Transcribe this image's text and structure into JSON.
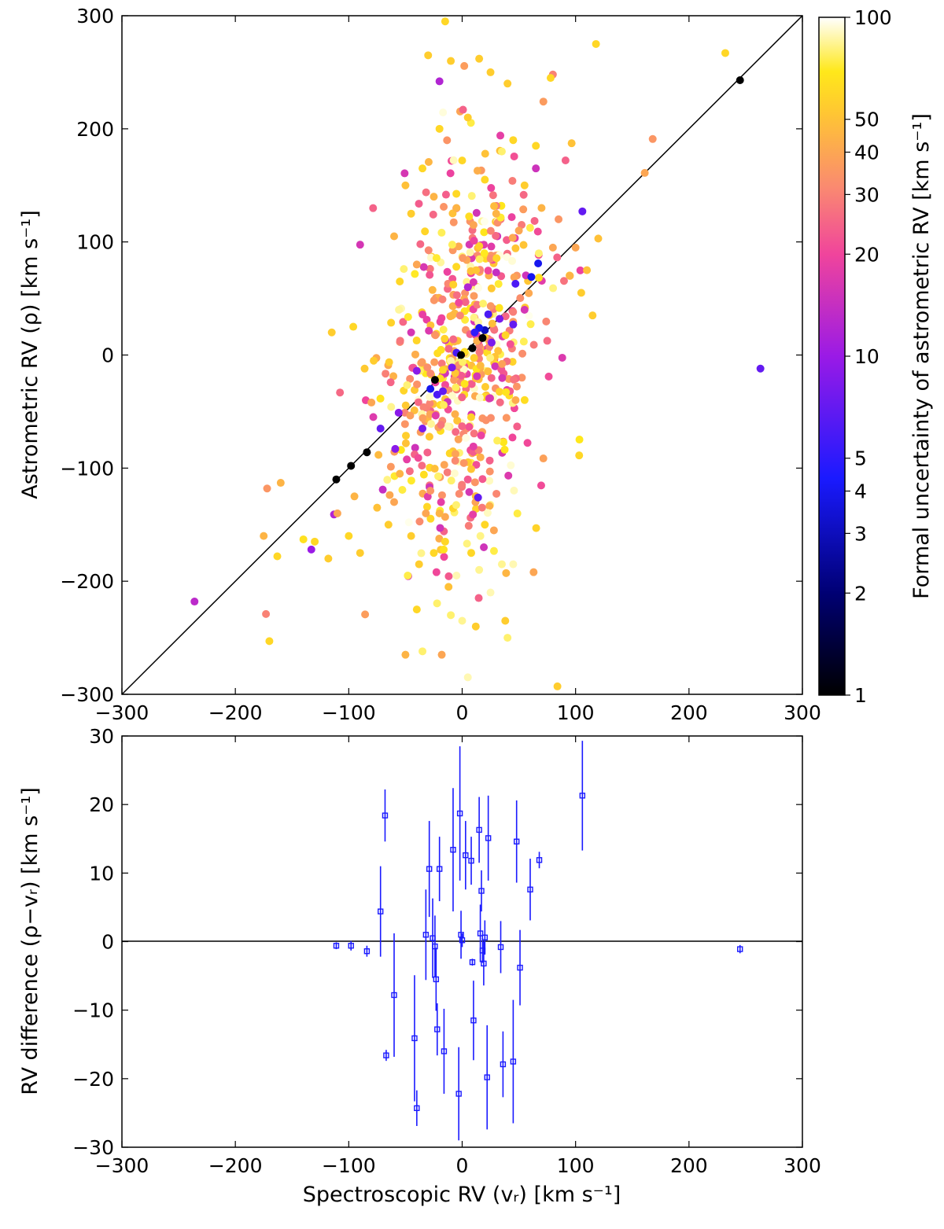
{
  "chart_data": [
    {
      "type": "scatter",
      "xlabel": "",
      "ylabel": "Astrometric RV (ρ) [km s⁻¹]",
      "xlim": [
        -300,
        300
      ],
      "ylim": [
        -300,
        300
      ],
      "xticks": [
        "−300",
        "−200",
        "−100",
        "0",
        "100",
        "200",
        "300"
      ],
      "yticks": [
        "300",
        "200",
        "100",
        "0",
        "−100",
        "−200",
        "−300"
      ],
      "reference_line": "y = x",
      "colorbar": {
        "label": "Formal uncertainty of astrometric RV [km s⁻¹]",
        "scale": "log",
        "range": [
          1,
          100
        ],
        "colormap": "gnuplot2",
        "ticks": [
          {
            "value": 100,
            "label": "100"
          },
          {
            "value": 50,
            "label": "50"
          },
          {
            "value": 40,
            "label": "40"
          },
          {
            "value": 30,
            "label": "30"
          },
          {
            "value": 20,
            "label": "20"
          },
          {
            "value": 10,
            "label": "10"
          },
          {
            "value": 5,
            "label": "5"
          },
          {
            "value": 4,
            "label": "4"
          },
          {
            "value": 3,
            "label": "3"
          },
          {
            "value": 2,
            "label": "2"
          },
          {
            "value": 1,
            "label": "1"
          }
        ]
      },
      "highlighted_points": [
        {
          "x": 245,
          "y": 243,
          "err": 1
        },
        {
          "x": -111,
          "y": -110,
          "err": 1
        },
        {
          "x": -98,
          "y": -98,
          "err": 1
        },
        {
          "x": -84,
          "y": -86,
          "err": 1
        },
        {
          "x": 9,
          "y": 6,
          "err": 1
        },
        {
          "x": -24,
          "y": -22,
          "err": 1
        },
        {
          "x": 18,
          "y": 15,
          "err": 1
        },
        {
          "x": -1,
          "y": 0,
          "err": 1
        }
      ],
      "points": [
        {
          "x": -236,
          "y": -218,
          "err": 13
        },
        {
          "x": 263,
          "y": -12,
          "err": 7
        },
        {
          "x": -20,
          "y": 242,
          "err": 12
        },
        {
          "x": 80,
          "y": 248,
          "err": 30
        },
        {
          "x": 168,
          "y": 191,
          "err": 35
        },
        {
          "x": 161,
          "y": 161,
          "err": 40
        },
        {
          "x": 106,
          "y": 127,
          "err": 7
        },
        {
          "x": 65,
          "y": 165,
          "err": 15
        },
        {
          "x": 67,
          "y": 81,
          "err": 4
        },
        {
          "x": 61,
          "y": 69,
          "err": 4
        },
        {
          "x": 47,
          "y": 63,
          "err": 6
        },
        {
          "x": 14,
          "y": -126,
          "err": 7
        },
        {
          "x": -133,
          "y": -172,
          "err": 10
        },
        {
          "x": -113,
          "y": -141,
          "err": 12
        },
        {
          "x": -70,
          "y": -119,
          "err": 14
        },
        {
          "x": -72,
          "y": -65,
          "err": 7
        },
        {
          "x": -59,
          "y": -83,
          "err": 9
        },
        {
          "x": -35,
          "y": -65,
          "err": 8
        },
        {
          "x": -28,
          "y": -30,
          "err": 4
        },
        {
          "x": -22,
          "y": -35,
          "err": 6
        },
        {
          "x": -17,
          "y": -32,
          "err": 7
        },
        {
          "x": 20,
          "y": 22,
          "err": 3
        },
        {
          "x": 15,
          "y": 24,
          "err": 4
        },
        {
          "x": 23,
          "y": 36,
          "err": 6
        },
        {
          "x": 11,
          "y": 20,
          "err": 5
        },
        {
          "x": 33,
          "y": 32,
          "err": 8
        },
        {
          "x": 45,
          "y": 27,
          "err": 7
        },
        {
          "x": 26,
          "y": 11,
          "err": 8
        },
        {
          "x": -5,
          "y": 2,
          "err": 6
        },
        {
          "x": -9,
          "y": -11,
          "err": 8
        },
        {
          "x": -40,
          "y": -14,
          "err": 9
        },
        {
          "x": -56,
          "y": -51,
          "err": 9
        },
        {
          "x": 5,
          "y": 60,
          "err": 12
        },
        {
          "x": 30,
          "y": 73,
          "err": 14
        },
        {
          "x": 55,
          "y": 40,
          "err": 16
        },
        {
          "x": -45,
          "y": 20,
          "err": 16
        },
        {
          "x": -85,
          "y": -40,
          "err": 20
        },
        {
          "x": -173,
          "y": -229,
          "err": 30
        },
        {
          "x": -172,
          "y": -118,
          "err": 35
        },
        {
          "x": -160,
          "y": -113,
          "err": 45
        },
        {
          "x": -175,
          "y": -160,
          "err": 45
        },
        {
          "x": -170,
          "y": -253,
          "err": 60
        },
        {
          "x": -163,
          "y": -178,
          "err": 60
        },
        {
          "x": -140,
          "y": -163,
          "err": 65
        },
        {
          "x": -130,
          "y": -165,
          "err": 60
        },
        {
          "x": -118,
          "y": -180,
          "err": 55
        },
        {
          "x": -110,
          "y": -140,
          "err": 40
        },
        {
          "x": -115,
          "y": 20,
          "err": 55
        },
        {
          "x": -96,
          "y": 25,
          "err": 60
        },
        {
          "x": -95,
          "y": -125,
          "err": 45
        },
        {
          "x": -90,
          "y": -175,
          "err": 55
        },
        {
          "x": -100,
          "y": -160,
          "err": 60
        },
        {
          "x": -80,
          "y": -42,
          "err": 40
        },
        {
          "x": -78,
          "y": -5,
          "err": 55
        },
        {
          "x": -75,
          "y": -135,
          "err": 50
        },
        {
          "x": -65,
          "y": -150,
          "err": 55
        },
        {
          "x": -60,
          "y": -130,
          "err": 40
        },
        {
          "x": -55,
          "y": -105,
          "err": 45
        },
        {
          "x": -50,
          "y": -265,
          "err": 45
        },
        {
          "x": -48,
          "y": -195,
          "err": 75
        },
        {
          "x": -45,
          "y": -160,
          "err": 55
        },
        {
          "x": -40,
          "y": -225,
          "err": 60
        },
        {
          "x": -38,
          "y": -185,
          "err": 55
        },
        {
          "x": -35,
          "y": -262,
          "err": 80
        },
        {
          "x": -32,
          "y": -140,
          "err": 40
        },
        {
          "x": -28,
          "y": -120,
          "err": 35
        },
        {
          "x": -25,
          "y": -175,
          "err": 60
        },
        {
          "x": -20,
          "y": -140,
          "err": 45
        },
        {
          "x": -18,
          "y": -265,
          "err": 40
        },
        {
          "x": -15,
          "y": -165,
          "err": 60
        },
        {
          "x": -12,
          "y": -205,
          "err": 50
        },
        {
          "x": -10,
          "y": -230,
          "err": 80
        },
        {
          "x": -5,
          "y": -195,
          "err": 90
        },
        {
          "x": 0,
          "y": -235,
          "err": 85
        },
        {
          "x": 5,
          "y": -285,
          "err": 90
        },
        {
          "x": 8,
          "y": -175,
          "err": 60
        },
        {
          "x": 12,
          "y": -240,
          "err": 55
        },
        {
          "x": 15,
          "y": -190,
          "err": 85
        },
        {
          "x": 20,
          "y": -150,
          "err": 60
        },
        {
          "x": 25,
          "y": -210,
          "err": 90
        },
        {
          "x": 28,
          "y": -155,
          "err": 40
        },
        {
          "x": 35,
          "y": -185,
          "err": 85
        },
        {
          "x": 38,
          "y": -235,
          "err": 55
        },
        {
          "x": 40,
          "y": -250,
          "err": 80
        },
        {
          "x": 45,
          "y": -185,
          "err": 90
        },
        {
          "x": 63,
          "y": -192,
          "err": 40
        },
        {
          "x": 84,
          "y": -293,
          "err": 55
        },
        {
          "x": -55,
          "y": 65,
          "err": 60
        },
        {
          "x": -60,
          "y": 105,
          "err": 45
        },
        {
          "x": -50,
          "y": 150,
          "err": 50
        },
        {
          "x": -45,
          "y": 125,
          "err": 55
        },
        {
          "x": -40,
          "y": 80,
          "err": 40
        },
        {
          "x": -35,
          "y": 165,
          "err": 60
        },
        {
          "x": -30,
          "y": 265,
          "err": 55
        },
        {
          "x": -25,
          "y": 140,
          "err": 45
        },
        {
          "x": -20,
          "y": 200,
          "err": 60
        },
        {
          "x": -15,
          "y": 295,
          "err": 60
        },
        {
          "x": -10,
          "y": 260,
          "err": 55
        },
        {
          "x": -5,
          "y": 130,
          "err": 45
        },
        {
          "x": 0,
          "y": 172,
          "err": 60
        },
        {
          "x": 5,
          "y": 210,
          "err": 55
        },
        {
          "x": 10,
          "y": 115,
          "err": 40
        },
        {
          "x": 15,
          "y": 262,
          "err": 55
        },
        {
          "x": 20,
          "y": 155,
          "err": 60
        },
        {
          "x": 25,
          "y": 250,
          "err": 55
        },
        {
          "x": 30,
          "y": 125,
          "err": 45
        },
        {
          "x": 35,
          "y": 180,
          "err": 80
        },
        {
          "x": 40,
          "y": 240,
          "err": 55
        },
        {
          "x": 45,
          "y": 190,
          "err": 60
        },
        {
          "x": 50,
          "y": 110,
          "err": 40
        },
        {
          "x": 55,
          "y": 150,
          "err": 55
        },
        {
          "x": 65,
          "y": 185,
          "err": 60
        },
        {
          "x": 70,
          "y": 130,
          "err": 45
        },
        {
          "x": 78,
          "y": 245,
          "err": 60
        },
        {
          "x": 80,
          "y": 95,
          "err": 40
        },
        {
          "x": 85,
          "y": 120,
          "err": 35
        },
        {
          "x": 95,
          "y": 70,
          "err": 45
        },
        {
          "x": 100,
          "y": 95,
          "err": 40
        },
        {
          "x": 105,
          "y": 55,
          "err": 55
        },
        {
          "x": 110,
          "y": 75,
          "err": 50
        },
        {
          "x": 115,
          "y": 35,
          "err": 55
        },
        {
          "x": 118,
          "y": 275,
          "err": 60
        },
        {
          "x": 120,
          "y": 103,
          "err": 50
        },
        {
          "x": 232,
          "y": 267,
          "err": 60
        }
      ],
      "cloud": {
        "center": [
          0,
          0
        ],
        "sd": [
          30,
          85
        ],
        "count": 560,
        "err_range": [
          15,
          100
        ],
        "note": "dense cloud of stars"
      }
    },
    {
      "type": "scatter",
      "xlabel": "Spectroscopic RV (vᵣ) [km s⁻¹]",
      "ylabel": "RV difference (ρ−vᵣ) [km s⁻¹]",
      "xlim": [
        -300,
        300
      ],
      "ylim": [
        -30,
        30
      ],
      "xticks": [
        "−300",
        "−200",
        "−100",
        "0",
        "100",
        "200",
        "300"
      ],
      "yticks": [
        "30",
        "20",
        "10",
        "0",
        "−10",
        "−20",
        "−30"
      ],
      "reference_line": "y = 0",
      "series_color": "#1a1aff",
      "points": [
        {
          "x": -111,
          "y": -0.6,
          "err": 0.5
        },
        {
          "x": -98,
          "y": -0.6,
          "err": 0.7
        },
        {
          "x": -84,
          "y": -1.4,
          "err": 0.8
        },
        {
          "x": -72,
          "y": 4.4,
          "err": 6.6
        },
        {
          "x": -68,
          "y": 18.4,
          "err": 3.8
        },
        {
          "x": -67,
          "y": -16.6,
          "err": 0.8
        },
        {
          "x": -60,
          "y": -7.8,
          "err": 9.0
        },
        {
          "x": -42,
          "y": -14.1,
          "err": 9.2
        },
        {
          "x": -40,
          "y": -24.3,
          "err": 2.6
        },
        {
          "x": -32,
          "y": 1.0,
          "err": 6.6
        },
        {
          "x": -29,
          "y": 10.6,
          "err": 7.0
        },
        {
          "x": -26,
          "y": 0.5,
          "err": 5.8
        },
        {
          "x": -24,
          "y": -0.7,
          "err": 4.5
        },
        {
          "x": -23,
          "y": -5.5,
          "err": 4.6
        },
        {
          "x": -22,
          "y": -12.8,
          "err": 3.8
        },
        {
          "x": -20,
          "y": 10.6,
          "err": 4.7
        },
        {
          "x": -16,
          "y": -16.0,
          "err": 6.2
        },
        {
          "x": -8,
          "y": 13.4,
          "err": 9.0
        },
        {
          "x": -3,
          "y": -22.2,
          "err": 6.8
        },
        {
          "x": -2,
          "y": 18.7,
          "err": 9.8
        },
        {
          "x": -1,
          "y": 1.0,
          "err": 3.5
        },
        {
          "x": 0,
          "y": 0.2,
          "err": 1.0
        },
        {
          "x": 3,
          "y": 12.6,
          "err": 5.0
        },
        {
          "x": 8,
          "y": 11.8,
          "err": 3.5
        },
        {
          "x": 9,
          "y": -3.0,
          "err": 0.5
        },
        {
          "x": 10,
          "y": -11.5,
          "err": 5.8
        },
        {
          "x": 15,
          "y": 16.3,
          "err": 4.8
        },
        {
          "x": 16,
          "y": 1.2,
          "err": 4.2
        },
        {
          "x": 17,
          "y": 7.4,
          "err": 3.0
        },
        {
          "x": 18,
          "y": -1.3,
          "err": 1.8
        },
        {
          "x": 19,
          "y": -3.2,
          "err": 3.2
        },
        {
          "x": 20,
          "y": 0.6,
          "err": 2.5
        },
        {
          "x": 22,
          "y": -19.8,
          "err": 7.6
        },
        {
          "x": 23,
          "y": 15.1,
          "err": 6.2
        },
        {
          "x": 34,
          "y": -0.8,
          "err": 3.8
        },
        {
          "x": 36,
          "y": -17.9,
          "err": 4.8
        },
        {
          "x": 45,
          "y": -17.5,
          "err": 9.0
        },
        {
          "x": 48,
          "y": 14.6,
          "err": 6.0
        },
        {
          "x": 51,
          "y": -3.8,
          "err": 5.5
        },
        {
          "x": 60,
          "y": 7.6,
          "err": 4.5
        },
        {
          "x": 68,
          "y": 11.9,
          "err": 1.2
        },
        {
          "x": 106,
          "y": 21.3,
          "err": 8.0
        },
        {
          "x": 245,
          "y": -1.1,
          "err": 0.6
        }
      ]
    }
  ]
}
